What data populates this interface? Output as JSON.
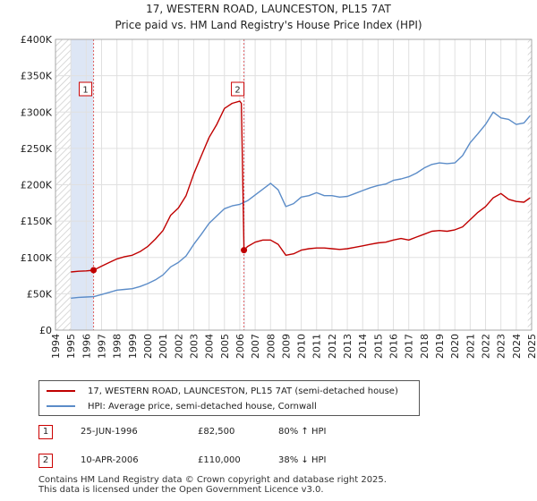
{
  "colors": {
    "price_line": "#c00000",
    "hpi_line": "#5b8cc8",
    "shade": "#dde6f5",
    "grid": "#e0e0e0",
    "vline": "#e06060",
    "marker_border": "#cc0000"
  },
  "header": {
    "title_line1": "17, WESTERN ROAD, LAUNCESTON, PL15 7AT",
    "title_line2": "Price paid vs. HM Land Registry's House Price Index (HPI)"
  },
  "legend": {
    "price_label": "17, WESTERN ROAD, LAUNCESTON, PL15 7AT (semi-detached house)",
    "hpi_label": "HPI: Average price, semi-detached house, Cornwall"
  },
  "sales": [
    {
      "id": "1",
      "date": "25-JUN-1996",
      "price": "£82,500",
      "hpi_change": "80% ↑ HPI"
    },
    {
      "id": "2",
      "date": "10-APR-2006",
      "price": "£110,000",
      "hpi_change": "38% ↓ HPI"
    }
  ],
  "footer": {
    "line1": "Contains HM Land Registry data © Crown copyright and database right 2025.",
    "line2": "This data is licensed under the Open Government Licence v3.0."
  },
  "chart_data": {
    "type": "line",
    "xlim": [
      1994,
      2025
    ],
    "ylim": [
      0,
      400000
    ],
    "x_ticks": [
      1994,
      1995,
      1996,
      1997,
      1998,
      1999,
      2000,
      2001,
      2002,
      2003,
      2004,
      2005,
      2006,
      2007,
      2008,
      2009,
      2010,
      2011,
      2012,
      2013,
      2014,
      2015,
      2016,
      2017,
      2018,
      2019,
      2020,
      2021,
      2022,
      2023,
      2024,
      2025
    ],
    "y_ticks": [
      {
        "value": 0,
        "label": "£0"
      },
      {
        "value": 50000,
        "label": "£50K"
      },
      {
        "value": 100000,
        "label": "£100K"
      },
      {
        "value": 150000,
        "label": "£150K"
      },
      {
        "value": 200000,
        "label": "£200K"
      },
      {
        "value": 250000,
        "label": "£250K"
      },
      {
        "value": 300000,
        "label": "£300K"
      },
      {
        "value": 350000,
        "label": "£350K"
      },
      {
        "value": 400000,
        "label": "£400K"
      }
    ],
    "shaded_ranges": [
      [
        1995.0,
        1996.48
      ],
      [
        2006.27,
        2006.3
      ]
    ],
    "hatched_ranges": [
      [
        1994,
        1995.0
      ],
      [
        2024.75,
        2025
      ]
    ],
    "sale_points": [
      {
        "id": "1",
        "x": 1996.48,
        "y": 82500
      },
      {
        "id": "2",
        "x": 2006.27,
        "y": 110000
      }
    ],
    "series": [
      {
        "name": "17, WESTERN ROAD, LAUNCESTON, PL15 7AT (semi-detached house)",
        "color": "#c00000",
        "x": [
          1995.0,
          1995.5,
          1996.0,
          1996.48,
          1997.0,
          1997.5,
          1998.0,
          1998.5,
          1999.0,
          1999.5,
          2000.0,
          2000.5,
          2001.0,
          2001.5,
          2002.0,
          2002.5,
          2003.0,
          2003.5,
          2004.0,
          2004.5,
          2005.0,
          2005.5,
          2006.0,
          2006.1,
          2006.27,
          2006.5,
          2007.0,
          2007.5,
          2008.0,
          2008.5,
          2009.0,
          2009.5,
          2010.0,
          2010.5,
          2011.0,
          2011.5,
          2012.0,
          2012.5,
          2013.0,
          2013.5,
          2014.0,
          2014.5,
          2015.0,
          2015.5,
          2016.0,
          2016.5,
          2017.0,
          2017.5,
          2018.0,
          2018.5,
          2019.0,
          2019.5,
          2020.0,
          2020.5,
          2021.0,
          2021.5,
          2022.0,
          2022.5,
          2023.0,
          2023.5,
          2024.0,
          2024.5,
          2024.9
        ],
        "y": [
          80000,
          81000,
          81500,
          82500,
          88000,
          93000,
          98000,
          101000,
          103000,
          108000,
          115000,
          125000,
          137000,
          158000,
          168000,
          185000,
          215000,
          240000,
          265000,
          283000,
          305000,
          312000,
          315000,
          312000,
          110000,
          115000,
          121000,
          124000,
          124000,
          118000,
          103000,
          105000,
          110000,
          112000,
          113000,
          113000,
          112000,
          111000,
          112000,
          114000,
          116000,
          118000,
          120000,
          121000,
          124000,
          126000,
          124000,
          128000,
          132000,
          136000,
          137000,
          136000,
          138000,
          142000,
          152000,
          162000,
          170000,
          182000,
          188000,
          180000,
          177000,
          176000,
          182000
        ]
      },
      {
        "name": "HPI: Average price, semi-detached house, Cornwall",
        "color": "#5b8cc8",
        "x": [
          1995.0,
          1995.5,
          1996.0,
          1996.5,
          1997.0,
          1997.5,
          1998.0,
          1998.5,
          1999.0,
          1999.5,
          2000.0,
          2000.5,
          2001.0,
          2001.5,
          2002.0,
          2002.5,
          2003.0,
          2003.5,
          2004.0,
          2004.5,
          2005.0,
          2005.5,
          2006.0,
          2006.5,
          2007.0,
          2007.5,
          2008.0,
          2008.5,
          2009.0,
          2009.5,
          2010.0,
          2010.5,
          2011.0,
          2011.5,
          2012.0,
          2012.5,
          2013.0,
          2013.5,
          2014.0,
          2014.5,
          2015.0,
          2015.5,
          2016.0,
          2016.5,
          2017.0,
          2017.5,
          2018.0,
          2018.5,
          2019.0,
          2019.5,
          2020.0,
          2020.5,
          2021.0,
          2021.5,
          2022.0,
          2022.5,
          2023.0,
          2023.5,
          2024.0,
          2024.5,
          2024.9
        ],
        "y": [
          44000,
          45000,
          45500,
          46000,
          49000,
          52000,
          55000,
          56000,
          57000,
          60000,
          64000,
          69000,
          76000,
          87000,
          93000,
          102000,
          118000,
          132000,
          147000,
          157000,
          167000,
          171000,
          173000,
          178000,
          186000,
          194000,
          202000,
          193000,
          170000,
          174000,
          183000,
          185000,
          189000,
          185000,
          185000,
          183000,
          184000,
          188000,
          192000,
          196000,
          199000,
          201000,
          206000,
          208000,
          211000,
          216000,
          223000,
          228000,
          230000,
          229000,
          230000,
          240000,
          258000,
          270000,
          283000,
          300000,
          292000,
          290000,
          283000,
          285000,
          295000
        ]
      }
    ]
  }
}
